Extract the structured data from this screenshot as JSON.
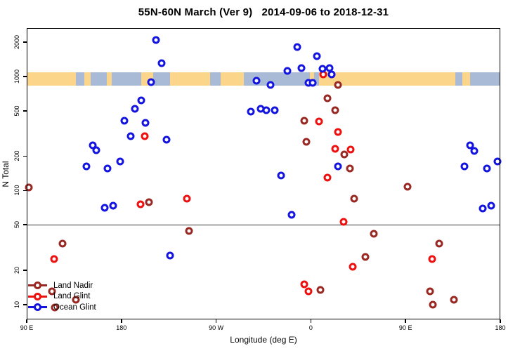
{
  "chart_data": {
    "type": "scatter",
    "title": "55N-60N March (Ver 9)   2014-09-06 to 2018-12-31",
    "xlabel": "Longitude (deg E)",
    "ylabel": "N Total",
    "x_axis": {
      "min": 90,
      "max": 540,
      "ticks": [
        {
          "pos": 90,
          "label": "90 E"
        },
        {
          "pos": 180,
          "label": "180"
        },
        {
          "pos": 270,
          "label": "90 W"
        },
        {
          "pos": 360,
          "label": "0"
        },
        {
          "pos": 450,
          "label": "90 E"
        },
        {
          "pos": 540,
          "label": "180"
        }
      ]
    },
    "y_axis": {
      "scale": "log",
      "min": 7.4,
      "max": 2655,
      "ticks": [
        {
          "value": 10,
          "label": "10"
        },
        {
          "value": 20,
          "label": "20"
        },
        {
          "value": 50,
          "label": "50"
        },
        {
          "value": 100,
          "label": "100"
        },
        {
          "value": 200,
          "label": "200"
        },
        {
          "value": 500,
          "label": "500"
        },
        {
          "value": 1000,
          "label": "1000"
        },
        {
          "value": 2000,
          "label": "2000"
        }
      ]
    },
    "reference_line_value": 50,
    "map_band": {
      "value_top": 1085,
      "value_bottom": 830,
      "land_color": "#fbd58a",
      "ocean_color": "#a8bad6",
      "segments": [
        {
          "from": 90,
          "to": 137,
          "type": "land"
        },
        {
          "from": 137,
          "to": 145,
          "type": "ocean"
        },
        {
          "from": 145,
          "to": 151,
          "type": "land"
        },
        {
          "from": 151,
          "to": 166,
          "type": "ocean"
        },
        {
          "from": 166,
          "to": 171,
          "type": "land"
        },
        {
          "from": 171,
          "to": 199,
          "type": "ocean"
        },
        {
          "from": 199,
          "to": 210,
          "type": "land"
        },
        {
          "from": 210,
          "to": 226,
          "type": "ocean"
        },
        {
          "from": 226,
          "to": 264,
          "type": "land"
        },
        {
          "from": 264,
          "to": 274,
          "type": "ocean"
        },
        {
          "from": 274,
          "to": 296,
          "type": "land"
        },
        {
          "from": 296,
          "to": 359,
          "type": "ocean"
        },
        {
          "from": 359,
          "to": 363,
          "type": "land"
        },
        {
          "from": 363,
          "to": 368,
          "type": "ocean"
        },
        {
          "from": 368,
          "to": 497,
          "type": "land"
        },
        {
          "from": 497,
          "to": 504,
          "type": "ocean"
        },
        {
          "from": 504,
          "to": 511,
          "type": "land"
        },
        {
          "from": 511,
          "to": 540,
          "type": "ocean"
        }
      ]
    },
    "legend_position": "bottom-left",
    "series": [
      {
        "name": "Land Nadir",
        "color": "#992822",
        "points": [
          [
            92,
            107
          ],
          [
            114,
            13
          ],
          [
            117,
            9.4
          ],
          [
            124,
            34
          ],
          [
            137,
            11
          ],
          [
            206,
            79
          ],
          [
            244,
            44
          ],
          [
            354,
            410
          ],
          [
            356,
            267
          ],
          [
            369,
            13.5
          ],
          [
            376,
            640
          ],
          [
            383,
            505
          ],
          [
            386,
            840
          ],
          [
            392,
            207
          ],
          [
            397,
            156
          ],
          [
            401,
            85
          ],
          [
            412,
            26
          ],
          [
            420,
            42
          ],
          [
            452,
            108
          ],
          [
            473,
            13
          ],
          [
            476,
            10
          ],
          [
            482,
            34
          ],
          [
            496,
            11
          ]
        ]
      },
      {
        "name": "Land Glint",
        "color": "#ee0f0f",
        "points": [
          [
            116,
            25
          ],
          [
            198,
            76
          ],
          [
            202,
            300
          ],
          [
            242,
            85
          ],
          [
            354,
            15
          ],
          [
            358,
            13
          ],
          [
            368,
            405
          ],
          [
            372,
            1040
          ],
          [
            376,
            130
          ],
          [
            383,
            232
          ],
          [
            386,
            325
          ],
          [
            391,
            53
          ],
          [
            398,
            229
          ],
          [
            400,
            21.5
          ],
          [
            475,
            25
          ]
        ]
      },
      {
        "name": "Ocean Glint",
        "color": "#1414e0",
        "points": [
          [
            147,
            163
          ],
          [
            153,
            250
          ],
          [
            156,
            225
          ],
          [
            164,
            70
          ],
          [
            167,
            156
          ],
          [
            172,
            74
          ],
          [
            179,
            180
          ],
          [
            183,
            410
          ],
          [
            189,
            300
          ],
          [
            193,
            520
          ],
          [
            199,
            620
          ],
          [
            203,
            390
          ],
          [
            208,
            890
          ],
          [
            213,
            2100
          ],
          [
            218,
            1300
          ],
          [
            223,
            280
          ],
          [
            226,
            27
          ],
          [
            303,
            490
          ],
          [
            308,
            915
          ],
          [
            312,
            520
          ],
          [
            318,
            505
          ],
          [
            322,
            840
          ],
          [
            326,
            505
          ],
          [
            332,
            135
          ],
          [
            338,
            1120
          ],
          [
            342,
            61
          ],
          [
            347,
            1800
          ],
          [
            351,
            1180
          ],
          [
            358,
            880
          ],
          [
            362,
            885
          ],
          [
            366,
            1500
          ],
          [
            371,
            1170
          ],
          [
            378,
            1180
          ],
          [
            380,
            1040
          ],
          [
            386,
            163
          ],
          [
            506,
            163
          ],
          [
            511,
            250
          ],
          [
            515,
            222
          ],
          [
            523,
            69
          ],
          [
            527,
            156
          ],
          [
            531,
            74
          ],
          [
            537,
            180
          ]
        ]
      }
    ]
  }
}
